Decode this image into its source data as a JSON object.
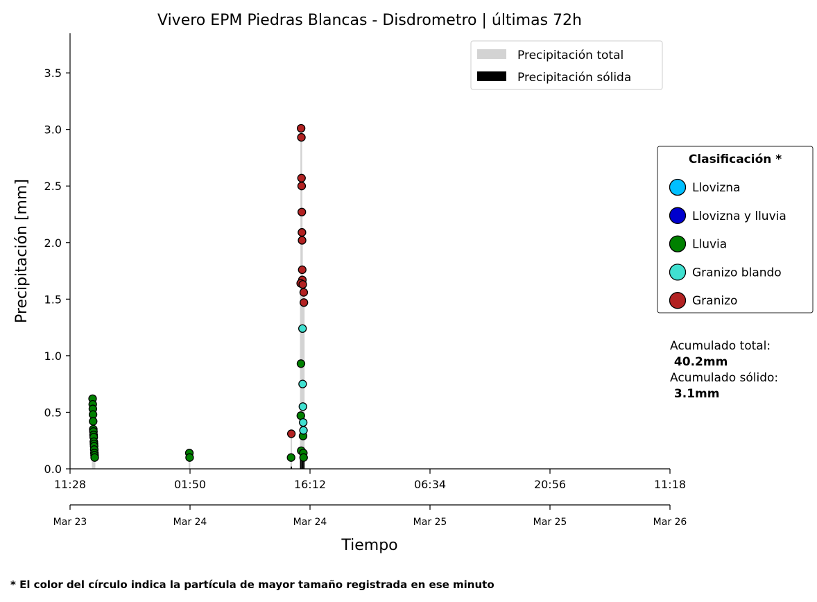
{
  "chart_data": {
    "type": "scatter",
    "title": "Vivero EPM Piedras Blancas - Disdrometro  |  últimas 72h",
    "xlabel": "Tiempo",
    "ylabel": "Precipitación [mm]",
    "ylim": [
      0,
      3.85
    ],
    "xlim": [
      "2024-03-23 11:28",
      "2024-03-26 11:18"
    ],
    "y_ticks": [
      "0.0",
      "0.5",
      "1.0",
      "1.5",
      "2.0",
      "2.5",
      "3.0",
      "3.5"
    ],
    "x_ticks": [
      {
        "x": "2024-03-23 11:28",
        "time": "11:28",
        "date": "Mar 23"
      },
      {
        "x": "2024-03-24 01:50",
        "time": "01:50",
        "date": "Mar 24"
      },
      {
        "x": "2024-03-24 16:12",
        "time": "16:12",
        "date": "Mar 24"
      },
      {
        "x": "2024-03-25 06:34",
        "time": "06:34",
        "date": "Mar 25"
      },
      {
        "x": "2024-03-25 20:56",
        "time": "20:56",
        "date": "Mar 25"
      },
      {
        "x": "2024-03-26 11:18",
        "time": "11:18",
        "date": "Mar 26"
      }
    ],
    "legend": {
      "position": "top-right",
      "entries": [
        {
          "label": "Precipitación total",
          "color": "#d3d3d3"
        },
        {
          "label": "Precipitación sólida",
          "color": "#000000"
        }
      ]
    },
    "class_legend": {
      "title": "Clasificación *",
      "position": "right",
      "entries": [
        {
          "label": "Llovizna",
          "color": "#00bfff"
        },
        {
          "label": "Llovizna y lluvia",
          "color": "#0000cd"
        },
        {
          "label": "Lluvia",
          "color": "#008000"
        },
        {
          "label": "Granizo blando",
          "color": "#40e0d0"
        },
        {
          "label": "Granizo",
          "color": "#b22222"
        }
      ]
    },
    "series": [
      {
        "name": "Lluvia",
        "color": "#008000",
        "points": [
          {
            "x": "2024-03-23 14:10",
            "y": 0.62
          },
          {
            "x": "2024-03-23 14:11",
            "y": 0.57
          },
          {
            "x": "2024-03-23 14:12",
            "y": 0.53
          },
          {
            "x": "2024-03-23 14:13",
            "y": 0.48
          },
          {
            "x": "2024-03-23 14:14",
            "y": 0.42
          },
          {
            "x": "2024-03-23 14:15",
            "y": 0.35
          },
          {
            "x": "2024-03-23 14:16",
            "y": 0.33
          },
          {
            "x": "2024-03-23 14:17",
            "y": 0.3
          },
          {
            "x": "2024-03-23 14:18",
            "y": 0.28
          },
          {
            "x": "2024-03-23 14:19",
            "y": 0.24
          },
          {
            "x": "2024-03-23 14:20",
            "y": 0.22
          },
          {
            "x": "2024-03-23 14:21",
            "y": 0.2
          },
          {
            "x": "2024-03-23 14:22",
            "y": 0.17
          },
          {
            "x": "2024-03-23 14:23",
            "y": 0.14
          },
          {
            "x": "2024-03-23 14:24",
            "y": 0.12
          },
          {
            "x": "2024-03-23 14:25",
            "y": 0.1
          },
          {
            "x": "2024-03-24 01:45",
            "y": 0.14
          },
          {
            "x": "2024-03-24 01:47",
            "y": 0.1
          },
          {
            "x": "2024-03-24 13:56",
            "y": 0.1
          },
          {
            "x": "2024-03-24 15:06",
            "y": 0.47
          },
          {
            "x": "2024-03-24 15:07",
            "y": 0.93
          },
          {
            "x": "2024-03-24 15:09",
            "y": 0.16
          },
          {
            "x": "2024-03-24 15:22",
            "y": 0.29
          },
          {
            "x": "2024-03-24 15:24",
            "y": 0.14
          },
          {
            "x": "2024-03-24 15:26",
            "y": 0.1
          }
        ]
      },
      {
        "name": "Granizo blando",
        "color": "#40e0d0",
        "points": [
          {
            "x": "2024-03-24 15:18",
            "y": 1.24
          },
          {
            "x": "2024-03-24 15:19",
            "y": 0.75
          },
          {
            "x": "2024-03-24 15:21",
            "y": 0.55
          },
          {
            "x": "2024-03-24 15:23",
            "y": 0.41
          },
          {
            "x": "2024-03-24 15:25",
            "y": 0.34
          }
        ]
      },
      {
        "name": "Granizo",
        "color": "#b22222",
        "points": [
          {
            "x": "2024-03-24 13:58",
            "y": 0.31
          },
          {
            "x": "2024-03-24 15:08",
            "y": 3.01
          },
          {
            "x": "2024-03-24 15:10",
            "y": 2.93
          },
          {
            "x": "2024-03-24 15:11",
            "y": 2.57
          },
          {
            "x": "2024-03-24 15:12",
            "y": 2.5
          },
          {
            "x": "2024-03-24 15:13",
            "y": 2.27
          },
          {
            "x": "2024-03-24 15:14",
            "y": 2.09
          },
          {
            "x": "2024-03-24 15:15",
            "y": 2.02
          },
          {
            "x": "2024-03-24 15:16",
            "y": 1.76
          },
          {
            "x": "2024-03-24 15:17",
            "y": 1.67
          },
          {
            "x": "2024-03-24 15:05",
            "y": 1.64
          },
          {
            "x": "2024-03-24 15:20",
            "y": 1.63
          },
          {
            "x": "2024-03-24 15:27",
            "y": 1.56
          },
          {
            "x": "2024-03-24 15:28",
            "y": 1.47
          }
        ]
      }
    ],
    "accumulated": {
      "total_label": "Acumulado total:",
      "total_value": " 40.2mm",
      "solid_label": "Acumulado sólido:",
      "solid_value": " 3.1mm"
    },
    "footnote": "* El color del círculo indica la partícula de mayor tamaño registrada en ese minuto"
  }
}
